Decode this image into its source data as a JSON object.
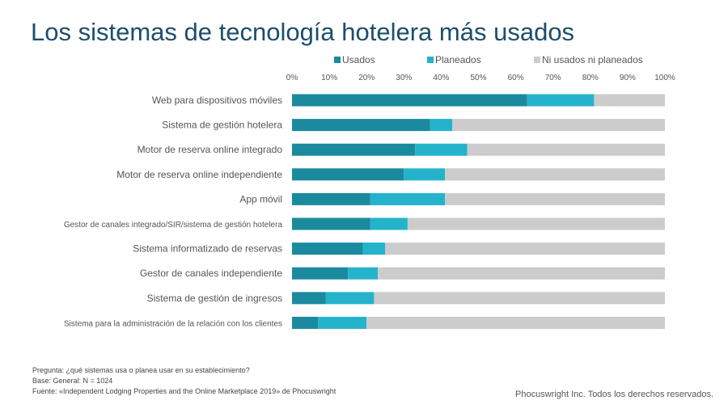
{
  "chart_data": {
    "type": "bar",
    "orientation": "horizontal",
    "stacked": true,
    "title": "Los sistemas de tecnología hotelera más usados",
    "xlim": [
      0,
      100
    ],
    "x_ticks": [
      "0%",
      "10%",
      "20%",
      "30%",
      "40%",
      "50%",
      "60%",
      "70%",
      "80%",
      "90%",
      "100%"
    ],
    "legend_position": "top",
    "categories": [
      "Web para dispositivos móviles",
      "Sistema de gestión hotelera",
      "Motor de reserva online integrado",
      "Motor de reserva online independiente",
      "App móvil",
      "Gestor de canales integrado/SIR/sistema de gestión hotelera",
      "Sistema informatizado de reservas",
      "Gestor de canales independiente",
      "Sistema de gestión de ingresos",
      "Sistema para la administración de la relación con los clientes"
    ],
    "series": [
      {
        "name": "Usados",
        "color": "#1b8a9e",
        "values": [
          63,
          37,
          33,
          30,
          21,
          21,
          19,
          15,
          9,
          7
        ]
      },
      {
        "name": "Planeados",
        "color": "#25b3cc",
        "values": [
          18,
          6,
          14,
          11,
          20,
          10,
          6,
          8,
          13,
          13
        ]
      },
      {
        "name": "Ni usados ni planeados",
        "color": "#cccccc",
        "values": [
          19,
          57,
          53,
          59,
          59,
          69,
          75,
          77,
          78,
          80
        ]
      }
    ]
  },
  "notes": [
    "Pregunta: ¿qué sistemas usa o planea usar en su establecimiento?",
    "Base: General: N = 1024",
    "Fuente: «Independent Lodging Properties and the Online Marketplace 2019» de Phocuswright"
  ],
  "copyright": "Phocuswright Inc. Todos los derechos reservados."
}
